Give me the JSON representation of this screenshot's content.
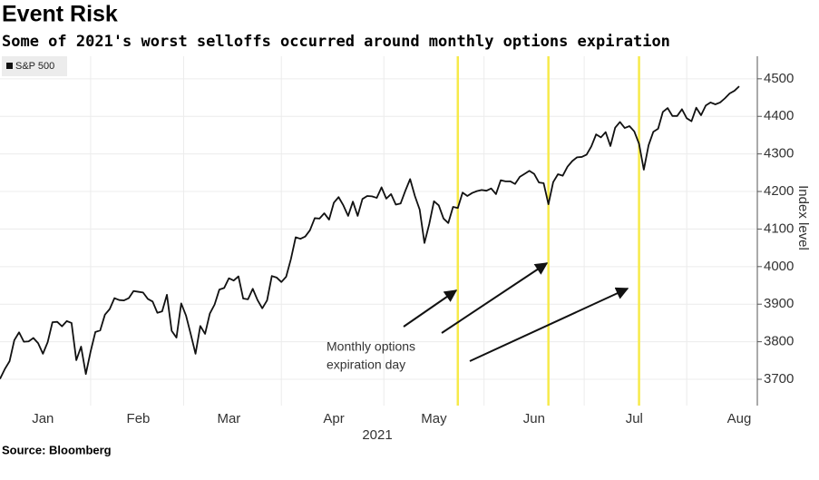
{
  "chart_data": {
    "type": "line",
    "title": "Event Risk",
    "subtitle": "Some of 2021's worst selloffs occurred around monthly options expiration",
    "y_label": "Index level",
    "x_label": "2021",
    "source": "Source: Bloomberg",
    "annotation": [
      "Monthly options",
      "expiration day"
    ],
    "categories": [
      null,
      null,
      null,
      null,
      null,
      null,
      null,
      null,
      null,
      "Jan",
      null,
      null,
      null,
      null,
      null,
      null,
      null,
      null,
      null,
      null,
      null,
      null,
      null,
      null,
      null,
      null,
      null,
      null,
      null,
      "Feb",
      null,
      null,
      null,
      null,
      null,
      null,
      null,
      null,
      null,
      null,
      null,
      null,
      null,
      null,
      null,
      null,
      null,
      null,
      "Mar",
      null,
      null,
      null,
      null,
      null,
      null,
      null,
      null,
      null,
      null,
      null,
      null,
      null,
      null,
      null,
      null,
      null,
      null,
      null,
      null,
      null,
      "Apr",
      null,
      null,
      null,
      null,
      null,
      null,
      null,
      null,
      null,
      null,
      null,
      null,
      null,
      null,
      null,
      null,
      null,
      null,
      null,
      null,
      "May",
      null,
      null,
      null,
      null,
      null,
      null,
      null,
      null,
      null,
      null,
      null,
      null,
      null,
      null,
      null,
      null,
      null,
      null,
      null,
      null,
      "Jun",
      null,
      null,
      null,
      null,
      null,
      null,
      null,
      null,
      null,
      null,
      null,
      null,
      null,
      null,
      null,
      null,
      null,
      null,
      null,
      null,
      "Jul",
      null,
      null,
      null,
      null,
      null,
      null,
      null,
      null,
      null,
      null,
      null,
      null,
      null,
      null,
      null,
      null,
      null,
      null,
      null,
      null,
      null,
      "Aug"
    ],
    "series": [
      {
        "name": "S&P 500",
        "color": "#111111",
        "values": [
          3701,
          3727,
          3748,
          3804,
          3825,
          3800,
          3801,
          3810,
          3796,
          3768,
          3799,
          3852,
          3853,
          3841,
          3855,
          3850,
          3751,
          3787,
          3714,
          3774,
          3826,
          3830,
          3872,
          3887,
          3916,
          3911,
          3910,
          3916,
          3935,
          3933,
          3931,
          3914,
          3907,
          3877,
          3881,
          3925,
          3829,
          3811,
          3902,
          3870,
          3820,
          3768,
          3842,
          3821,
          3875,
          3899,
          3939,
          3943,
          3969,
          3963,
          3974,
          3915,
          3913,
          3941,
          3911,
          3889,
          3910,
          3975,
          3971,
          3959,
          3973,
          4020,
          4078,
          4074,
          4080,
          4097,
          4129,
          4128,
          4142,
          4125,
          4170,
          4185,
          4163,
          4135,
          4173,
          4135,
          4180,
          4188,
          4187,
          4183,
          4211,
          4181,
          4193,
          4165,
          4168,
          4202,
          4233,
          4188,
          4152,
          4063,
          4113,
          4174,
          4163,
          4128,
          4116,
          4159,
          4156,
          4197,
          4188,
          4196,
          4201,
          4204,
          4202,
          4208,
          4193,
          4230,
          4227,
          4227,
          4220,
          4239,
          4247,
          4255,
          4247,
          4224,
          4222,
          4166,
          4225,
          4246,
          4242,
          4266,
          4281,
          4291,
          4292,
          4298,
          4320,
          4352,
          4344,
          4358,
          4321,
          4370,
          4385,
          4369,
          4374,
          4360,
          4327,
          4258,
          4323,
          4359,
          4367,
          4412,
          4422,
          4401,
          4401,
          4419,
          4395,
          4387,
          4423,
          4403,
          4429,
          4437,
          4432,
          4437,
          4448,
          4461,
          4468,
          4480
        ]
      }
    ],
    "highlights": [
      96,
      115,
      134
    ],
    "highlight_color": "#f7ea4a",
    "ylim": [
      3630,
      4560
    ],
    "yticks": [
      3700,
      3800,
      3900,
      4000,
      4100,
      4200,
      4300,
      4400,
      4500
    ],
    "grid": true
  }
}
